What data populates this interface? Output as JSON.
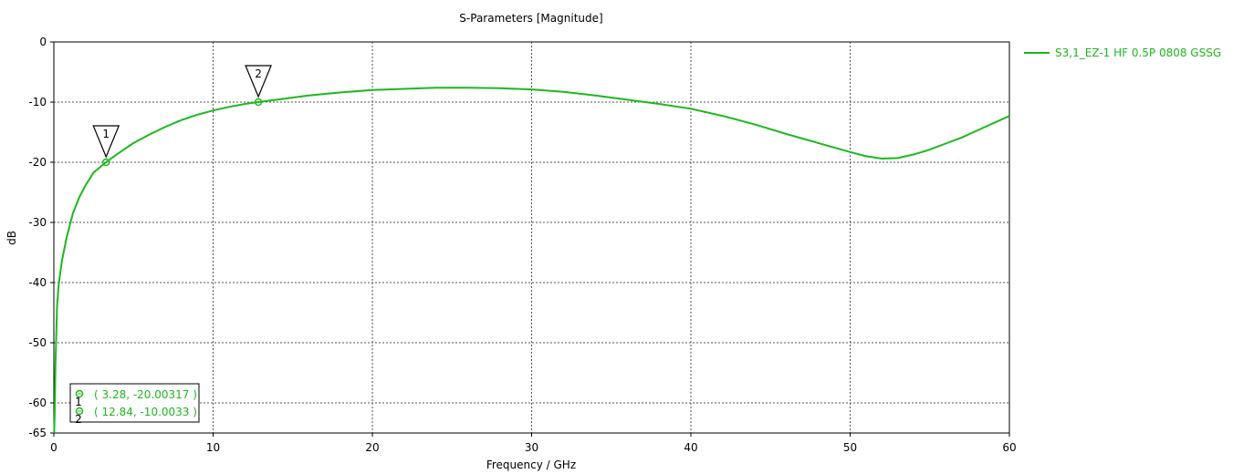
{
  "chart_data": {
    "type": "line",
    "title": "S-Parameters [Magnitude]",
    "xlabel": "Frequency / GHz",
    "ylabel": "dB",
    "xlim": [
      0,
      60
    ],
    "ylim": [
      -65,
      0
    ],
    "x_ticks": [
      0,
      10,
      20,
      30,
      40,
      50,
      60
    ],
    "y_ticks": [
      0,
      -10,
      -20,
      -30,
      -40,
      -50,
      -60,
      -65
    ],
    "grid": true,
    "legend_position": "right",
    "series": [
      {
        "name": "S3,1_EZ-1 HF 0.5P 0808 GSSG",
        "color": "#1db81d",
        "points": [
          [
            0.02,
            -65
          ],
          [
            0.05,
            -62
          ],
          [
            0.1,
            -54
          ],
          [
            0.2,
            -44
          ],
          [
            0.3,
            -40.5
          ],
          [
            0.5,
            -36.5
          ],
          [
            0.8,
            -32.5
          ],
          [
            1.2,
            -28.5
          ],
          [
            1.6,
            -25.8
          ],
          [
            2.0,
            -23.8
          ],
          [
            2.5,
            -21.7
          ],
          [
            3.28,
            -20.0
          ],
          [
            4,
            -18.6
          ],
          [
            5,
            -16.8
          ],
          [
            6,
            -15.4
          ],
          [
            7,
            -14.1
          ],
          [
            8,
            -13.0
          ],
          [
            9,
            -12.1
          ],
          [
            10,
            -11.4
          ],
          [
            11,
            -10.8
          ],
          [
            12,
            -10.3
          ],
          [
            12.84,
            -10.0
          ],
          [
            14,
            -9.6
          ],
          [
            16,
            -8.9
          ],
          [
            18,
            -8.4
          ],
          [
            20,
            -8.0
          ],
          [
            22,
            -7.8
          ],
          [
            24,
            -7.6
          ],
          [
            26,
            -7.6
          ],
          [
            28,
            -7.7
          ],
          [
            30,
            -7.9
          ],
          [
            32,
            -8.3
          ],
          [
            34,
            -8.9
          ],
          [
            36,
            -9.6
          ],
          [
            38,
            -10.3
          ],
          [
            40,
            -11.1
          ],
          [
            42,
            -12.3
          ],
          [
            44,
            -13.7
          ],
          [
            46,
            -15.3
          ],
          [
            48,
            -16.8
          ],
          [
            50,
            -18.3
          ],
          [
            51,
            -19.0
          ],
          [
            52,
            -19.4
          ],
          [
            53,
            -19.3
          ],
          [
            54,
            -18.7
          ],
          [
            55,
            -17.9
          ],
          [
            56,
            -16.9
          ],
          [
            57,
            -15.9
          ],
          [
            58,
            -14.7
          ],
          [
            59,
            -13.5
          ],
          [
            60,
            -12.3
          ]
        ]
      }
    ],
    "markers": [
      {
        "id": "1",
        "x": 3.28,
        "y": -20.0,
        "readout": "( 3.28, -20.00317 )"
      },
      {
        "id": "2",
        "x": 12.84,
        "y": -10.0,
        "readout": "( 12.84, -10.0033 )"
      }
    ]
  }
}
